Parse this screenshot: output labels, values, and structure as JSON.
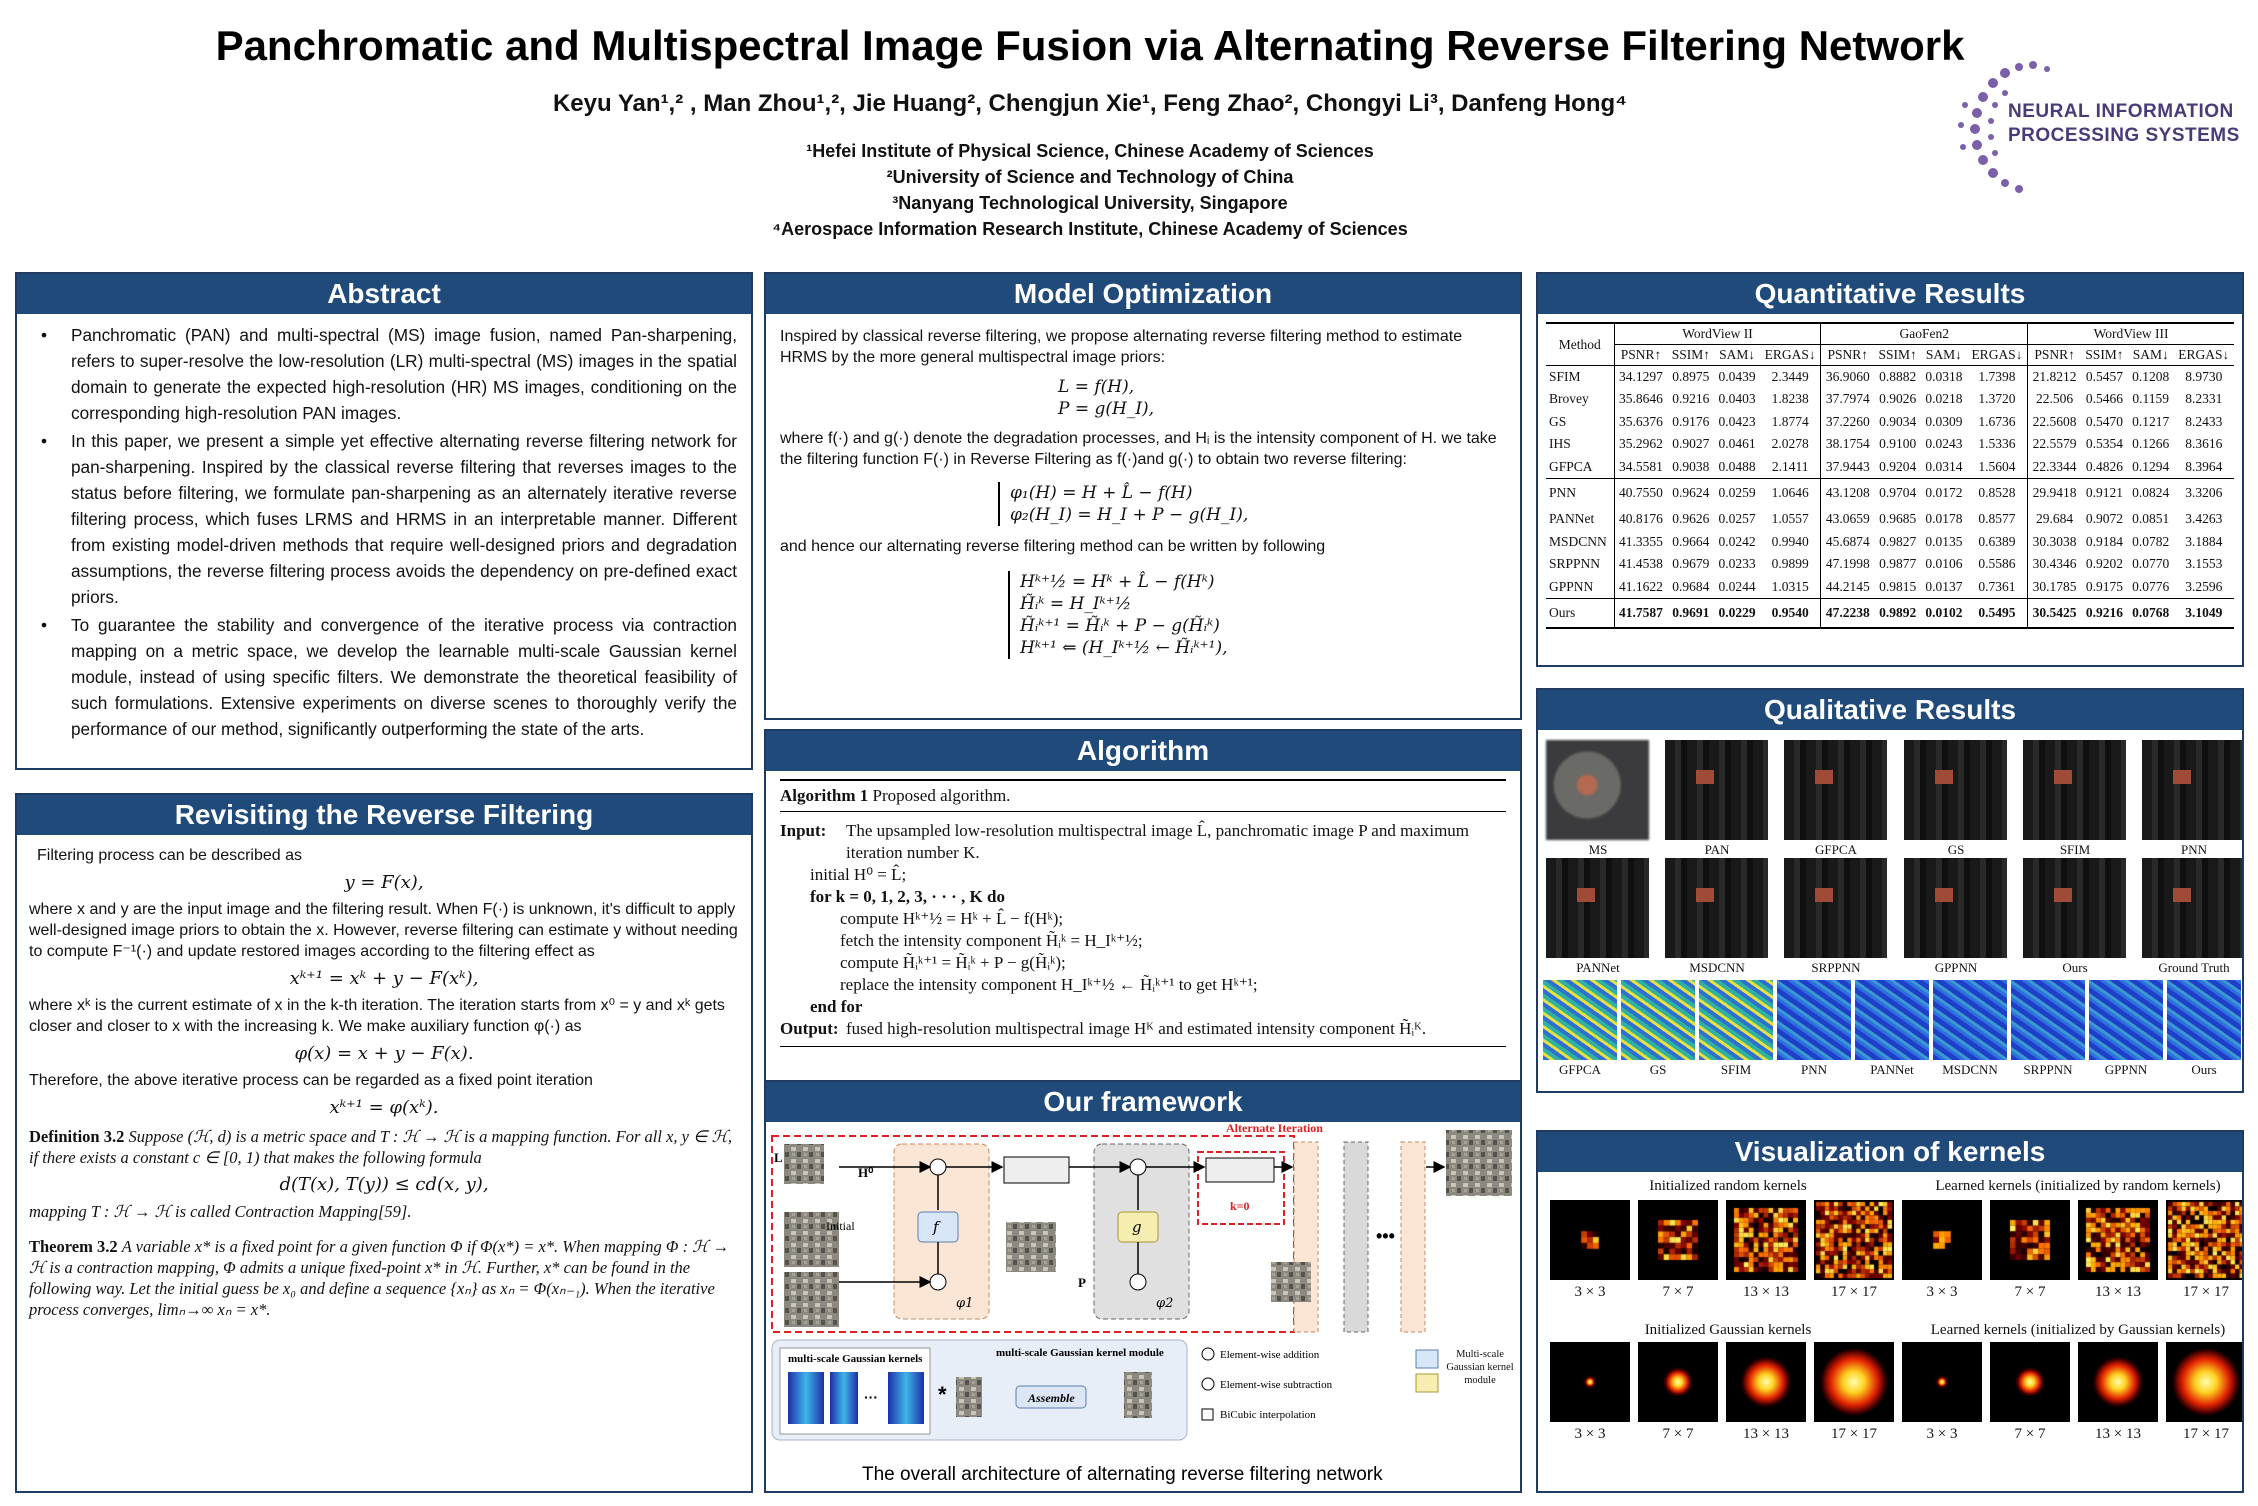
{
  "header": {
    "title": "Panchromatic and Multispectral Image Fusion via Alternating Reverse Filtering Network",
    "authors": "Keyu Yan¹,² , Man Zhou¹,², Jie Huang², Chengjun Xie¹, Feng Zhao², Chongyi Li³, Danfeng Hong⁴",
    "affiliations": [
      "¹Hefei Institute of Physical Science, Chinese Academy of Sciences",
      "²University of Science and Technology of China",
      "³Nanyang Technological University, Singapore",
      "⁴Aerospace Information Research Institute, Chinese Academy of Sciences"
    ],
    "logo_line1": "NEURAL INFORMATION",
    "logo_line2": "PROCESSING SYSTEMS"
  },
  "abstract": {
    "heading": "Abstract",
    "bullets": [
      "Panchromatic (PAN) and multi-spectral (MS) image fusion, named Pan-sharpening, refers to super-resolve the low-resolution (LR) multi-spectral (MS) images in the spatial domain to generate the expected high-resolution (HR) MS images, conditioning on the corresponding high-resolution PAN images.",
      "In this paper, we present a simple yet effective alternating reverse filtering network for pan-sharpening. Inspired by the classical reverse filtering that reverses images to the status before filtering, we formulate pan-sharpening as an alternately iterative reverse filtering process, which fuses LRMS and HRMS in an interpretable manner. Different from existing model-driven methods that require well-designed priors and degradation assumptions, the reverse filtering process avoids the dependency on pre-defined exact priors.",
      "To guarantee the stability and convergence of the iterative process via contraction mapping on a metric space, we develop the learnable multi-scale Gaussian kernel module, instead of using specific filters. We demonstrate the theoretical feasibility of such formulations. Extensive experiments on diverse scenes to thoroughly verify the performance of our method, significantly outperforming the state of the arts."
    ]
  },
  "revisiting": {
    "heading": "Revisiting the Reverse Filtering",
    "p1": "Filtering process can be described as",
    "eq1": "y = F(x),",
    "p2": "where x and y are the input image and the filtering result. When F(·) is unknown, it's difficult to apply well-designed image priors to obtain the x. However, reverse filtering can estimate y without needing to compute F⁻¹(·) and update restored images according to the filtering effect as",
    "eq2": "xᵏ⁺¹ = xᵏ + y − F(xᵏ),",
    "p3": "where xᵏ is the current estimate of x in the k-th iteration. The iteration starts from x⁰ = y and xᵏ gets closer and closer to x with the increasing k. We make auxiliary function φ(·) as",
    "eq3": "φ(x) = x + y − F(x).",
    "p4": "Therefore, the above iterative process can be regarded as a fixed point iteration",
    "eq4": "xᵏ⁺¹ = φ(xᵏ).",
    "def_label": "Definition 3.2",
    "def_text": "Suppose (ℋ, d) is a metric space and T : ℋ → ℋ is a mapping function. For all x, y ∈ ℋ, if there exists a constant c ∈ [0, 1) that makes the following formula",
    "def_eq": "d(T(x), T(y)) ≤ cd(x, y),",
    "def_tail": "mapping T : ℋ → ℋ is called Contraction Mapping[59].",
    "thm_label": "Theorem 3.2",
    "thm_text": "A variable x* is a fixed point for a given function Φ if Φ(x*) = x*. When mapping Φ : ℋ → ℋ is a contraction mapping, Φ admits a unique fixed-point x* in ℋ. Further, x* can be found in the following way. Let the initial guess be x₀ and define a sequence {xₙ} as xₙ = Φ(xₙ₋₁). When the iterative process converges, limₙ→∞ xₙ = x*."
  },
  "model_opt": {
    "heading": "Model Optimization",
    "p1": "Inspired by classical reverse filtering, we propose alternating reverse filtering method to estimate HRMS by the more general multispectral image priors:",
    "eq1a": "L   =   f(H),",
    "eq1b": "P   =   g(H_I),",
    "p2": "where f(·) and g(·) denote the degradation processes, and Hᵢ is the intensity component of H. we take the filtering function F(·) in Reverse Filtering as f(·)and g(·) to obtain two reverse filtering:",
    "eq2a": "φ₁(H)   =   H + L̂ − f(H)",
    "eq2b": "φ₂(H_I)   =   H_I + P − g(H_I),",
    "p3": "and hence our alternating reverse filtering method can be written by following",
    "eq3": [
      "Hᵏ⁺½   =   Hᵏ + L̂ − f(Hᵏ)",
      "H̃ᵢᵏ   =   H_Iᵏ⁺½",
      "H̃ᵢᵏ⁺¹   =   H̃ᵢᵏ + P − g(H̃ᵢᵏ)",
      "Hᵏ⁺¹   ⇐   (H_Iᵏ⁺½ ← H̃ᵢᵏ⁺¹),"
    ]
  },
  "algorithm": {
    "heading": "Algorithm",
    "caption_bold": "Algorithm 1",
    "caption": "Proposed algorithm.",
    "input_label": "Input:",
    "input_text": "The upsampled low-resolution multispectral image L̂, panchromatic image P and maximum iteration number K.",
    "lines": [
      "initial H⁰ = L̂;",
      "for k = 0, 1, 2, 3, · · · , K do",
      "compute Hᵏ⁺½ = Hᵏ + L̂ − f(Hᵏ);",
      "fetch the intensity component H̃ᵢᵏ = H_Iᵏ⁺½;",
      "compute H̃ᵢᵏ⁺¹ = H̃ᵢᵏ + P − g(H̃ᵢᵏ);",
      "replace the intensity component H_Iᵏ⁺½ ← H̃ᵢᵏ⁺¹ to get Hᵏ⁺¹;",
      "end for"
    ],
    "output_label": "Output:",
    "output_text": "fused high-resolution multispectral image Hᴷ and estimated intensity component H̃ᵢᴷ."
  },
  "framework": {
    "heading": "Our framework",
    "alt_iter": "Alternate Iteration",
    "k0": "k=0",
    "initial": "Initial",
    "f_label": "f",
    "g_label": "g",
    "phi1": "φ1",
    "phi2": "φ2",
    "L_label": "L",
    "P_label": "P",
    "H0_label": "H⁰",
    "msgk_title": "multi-scale Gaussian kernels",
    "msgk_module": "multi-scale Gaussian kernel module",
    "assemble": "Assemble",
    "legend_add": "Element-wise addition",
    "legend_sub": "Element-wise subtraction",
    "legend_bic": "BiCubic interpolation",
    "legend_ms": "Multi-scale Gaussian kernel module",
    "caption": "The overall architecture of alternating reverse filtering network"
  },
  "quant": {
    "heading": "Quantitative Results",
    "method_header": "Method",
    "groups": [
      "WordView II",
      "GaoFen2",
      "WordView III"
    ],
    "metrics": [
      "PSNR↑",
      "SSIM↑",
      "SAM↓",
      "ERGAS↓"
    ],
    "rows_a": [
      {
        "m": "SFIM",
        "v": [
          "34.1297",
          "0.8975",
          "0.0439",
          "2.3449",
          "36.9060",
          "0.8882",
          "0.0318",
          "1.7398",
          "21.8212",
          "0.5457",
          "0.1208",
          "8.9730"
        ]
      },
      {
        "m": "Brovey",
        "v": [
          "35.8646",
          "0.9216",
          "0.0403",
          "1.8238",
          "37.7974",
          "0.9026",
          "0.0218",
          "1.3720",
          "22.506",
          "0.5466",
          "0.1159",
          "8.2331"
        ]
      },
      {
        "m": "GS",
        "v": [
          "35.6376",
          "0.9176",
          "0.0423",
          "1.8774",
          "37.2260",
          "0.9034",
          "0.0309",
          "1.6736",
          "22.5608",
          "0.5470",
          "0.1217",
          "8.2433"
        ]
      },
      {
        "m": "IHS",
        "v": [
          "35.2962",
          "0.9027",
          "0.0461",
          "2.0278",
          "38.1754",
          "0.9100",
          "0.0243",
          "1.5336",
          "22.5579",
          "0.5354",
          "0.1266",
          "8.3616"
        ]
      },
      {
        "m": "GFPCA",
        "v": [
          "34.5581",
          "0.9038",
          "0.0488",
          "2.1411",
          "37.9443",
          "0.9204",
          "0.0314",
          "1.5604",
          "22.3344",
          "0.4826",
          "0.1294",
          "8.3964"
        ]
      }
    ],
    "rows_b": [
      {
        "m": "PNN",
        "v": [
          "40.7550",
          "0.9624",
          "0.0259",
          "1.0646",
          "43.1208",
          "0.9704",
          "0.0172",
          "0.8528",
          "29.9418",
          "0.9121",
          "0.0824",
          "3.3206"
        ]
      },
      {
        "m": "PANNet",
        "v": [
          "40.8176",
          "0.9626",
          "0.0257",
          "1.0557",
          "43.0659",
          "0.9685",
          "0.0178",
          "0.8577",
          "29.684",
          "0.9072",
          "0.0851",
          "3.4263"
        ]
      },
      {
        "m": "MSDCNN",
        "v": [
          "41.3355",
          "0.9664",
          "0.0242",
          "0.9940",
          "45.6874",
          "0.9827",
          "0.0135",
          "0.6389",
          "30.3038",
          "0.9184",
          "0.0782",
          "3.1884"
        ]
      },
      {
        "m": "SRPPNN",
        "v": [
          "41.4538",
          "0.9679",
          "0.0233",
          "0.9899",
          "47.1998",
          "0.9877",
          "0.0106",
          "0.5586",
          "30.4346",
          "0.9202",
          "0.0770",
          "3.1553"
        ]
      },
      {
        "m": "GPPNN",
        "v": [
          "41.1622",
          "0.9684",
          "0.0244",
          "1.0315",
          "44.2145",
          "0.9815",
          "0.0137",
          "0.7361",
          "30.1785",
          "0.9175",
          "0.0776",
          "3.2596"
        ]
      }
    ],
    "ours": {
      "m": "Ours",
      "v": [
        "41.7587",
        "0.9691",
        "0.0229",
        "0.9540",
        "47.2238",
        "0.9892",
        "0.0102",
        "0.5495",
        "30.5425",
        "0.9216",
        "0.0768",
        "3.1049"
      ]
    }
  },
  "qual": {
    "heading": "Qualitative Results",
    "row1": [
      "MS",
      "PAN",
      "GFPCA",
      "GS",
      "SFIM",
      "PNN"
    ],
    "row2": [
      "PANNet",
      "MSDCNN",
      "SRPPNN",
      "GPPNN",
      "Ours",
      "Ground Truth"
    ],
    "row3": [
      "GFPCA",
      "GS",
      "SFIM",
      "PNN",
      "PANNet",
      "MSDCNN",
      "SRPPNN",
      "GPPNN",
      "Ours"
    ]
  },
  "kernels": {
    "heading": "Visualization of kernels",
    "cap_a": "Initialized random kernels",
    "cap_b": "Learned kernels (initialized by random kernels)",
    "cap_c": "Initialized Gaussian kernels",
    "cap_d": "Learned kernels (initialized by Gaussian kernels)",
    "sizes": [
      "3 × 3",
      "7 × 7",
      "13 × 13",
      "17 × 17"
    ]
  }
}
